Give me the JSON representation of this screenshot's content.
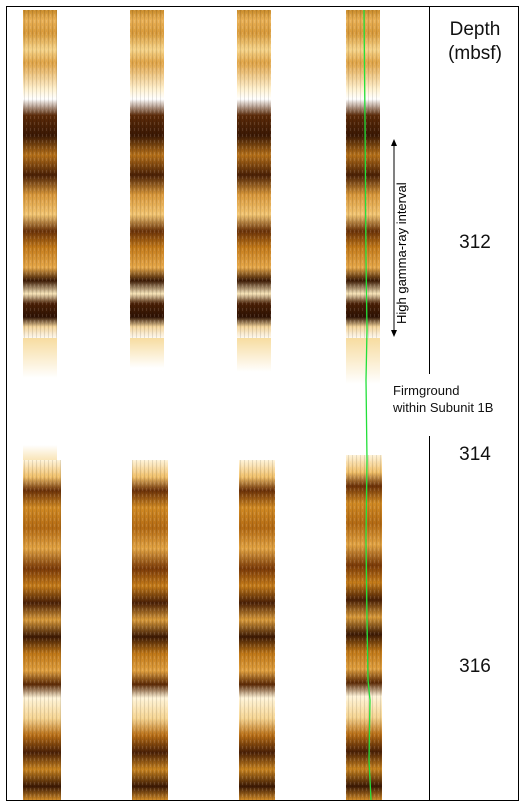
{
  "header": {
    "depth_line1": "Depth",
    "depth_line2": "(mbsf)"
  },
  "depth_ticks": [
    "312",
    "314",
    "316"
  ],
  "annotations": {
    "gamma_interval": "High gamma-ray interval",
    "firmground_line1": "Firmground",
    "firmground_line2": "within Subunit 1B"
  },
  "colors": {
    "light_sediment": "#f3c16a",
    "mid_sediment": "#c47a18",
    "dark_sediment": "#3a1804",
    "trace": "#22e03a"
  }
}
